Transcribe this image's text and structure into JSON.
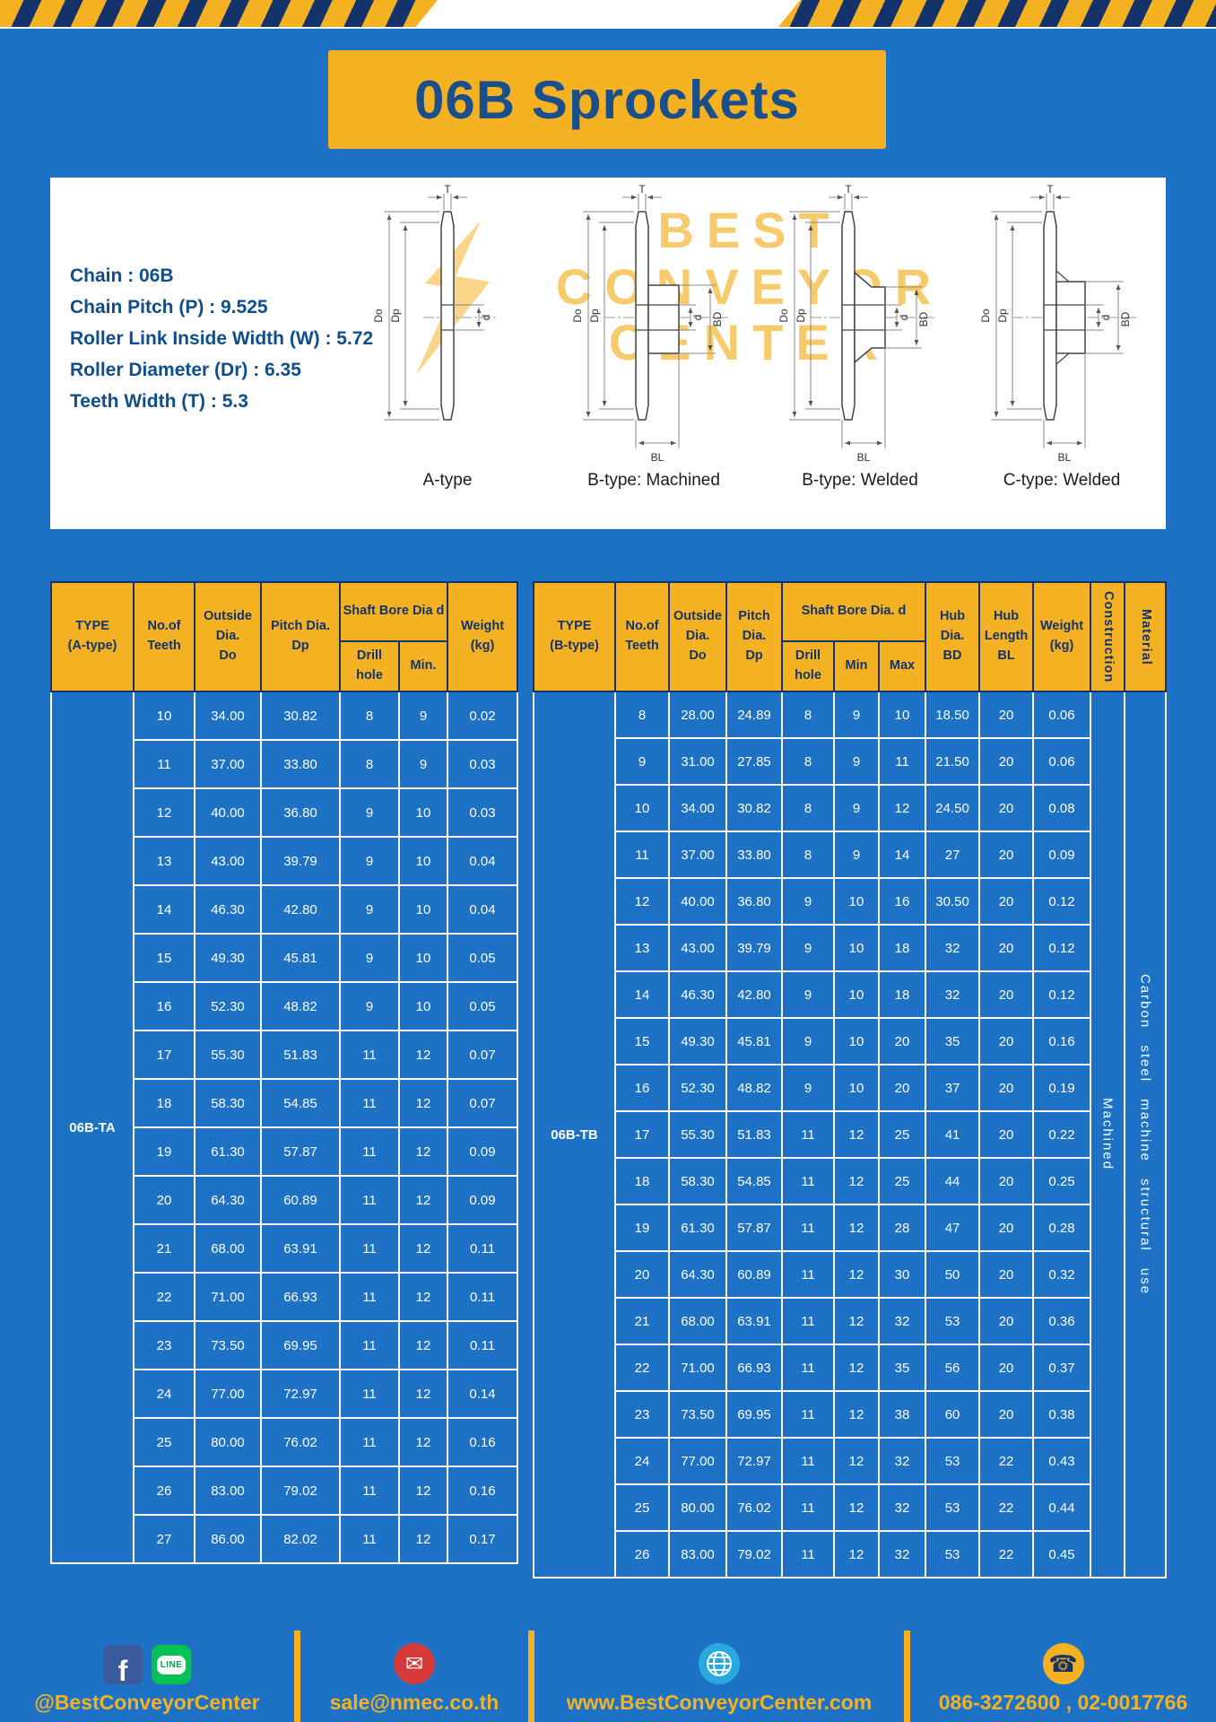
{
  "title": "06B Sprockets",
  "specs": {
    "lines": [
      "Chain  :  06B",
      "Chain Pitch (P)  :  9.525",
      "Roller Link Inside Width (W)  :  5.72",
      "Roller Diameter (Dr)  :  6.35",
      "Teeth Width (T)  :  5.3"
    ]
  },
  "watermark": {
    "line1": "BEST",
    "line2": "CONVEYOR",
    "line3": "CENTER"
  },
  "drawings": [
    {
      "label": "A-type",
      "dims": {
        "T": "T",
        "Do": "Do",
        "Dp": "Dp",
        "d": "d"
      }
    },
    {
      "label": "B-type: Machined",
      "dims": {
        "T": "T",
        "Do": "Do",
        "Dp": "Dp",
        "d": "d",
        "BD": "BD",
        "BL": "BL"
      }
    },
    {
      "label": "B-type: Welded",
      "dims": {
        "T": "T",
        "Do": "Do",
        "Dp": "Dp",
        "d": "d",
        "BD": "BD",
        "BL": "BL"
      }
    },
    {
      "label": "C-type: Welded",
      "dims": {
        "T": "T",
        "Do": "Do",
        "Dp": "Dp",
        "d": "d",
        "BD": "BD",
        "BL": "BL"
      }
    }
  ],
  "table_a": {
    "headers": {
      "type": "TYPE\n(A-type)",
      "teeth": "No.of\nTeeth",
      "outside": "Outside\nDia.\nDo",
      "pitch": "Pitch Dia.\nDp",
      "bore_group": "Shaft Bore Dia d",
      "drill": "Drill hole",
      "min": "Min.",
      "weight": "Weight\n(kg)"
    },
    "type_label": "06B-TA",
    "rows": [
      [
        "10",
        "34.00",
        "30.82",
        "8",
        "9",
        "0.02"
      ],
      [
        "11",
        "37.00",
        "33.80",
        "8",
        "9",
        "0.03"
      ],
      [
        "12",
        "40.00",
        "36.80",
        "9",
        "10",
        "0.03"
      ],
      [
        "13",
        "43.00",
        "39.79",
        "9",
        "10",
        "0.04"
      ],
      [
        "14",
        "46.30",
        "42.80",
        "9",
        "10",
        "0.04"
      ],
      [
        "15",
        "49.30",
        "45.81",
        "9",
        "10",
        "0.05"
      ],
      [
        "16",
        "52.30",
        "48.82",
        "9",
        "10",
        "0.05"
      ],
      [
        "17",
        "55.30",
        "51.83",
        "11",
        "12",
        "0.07"
      ],
      [
        "18",
        "58.30",
        "54.85",
        "11",
        "12",
        "0.07"
      ],
      [
        "19",
        "61.30",
        "57.87",
        "11",
        "12",
        "0.09"
      ],
      [
        "20",
        "64.30",
        "60.89",
        "11",
        "12",
        "0.09"
      ],
      [
        "21",
        "68.00",
        "63.91",
        "11",
        "12",
        "0.11"
      ],
      [
        "22",
        "71.00",
        "66.93",
        "11",
        "12",
        "0.11"
      ],
      [
        "23",
        "73.50",
        "69.95",
        "11",
        "12",
        "0.11"
      ],
      [
        "24",
        "77.00",
        "72.97",
        "11",
        "12",
        "0.14"
      ],
      [
        "25",
        "80.00",
        "76.02",
        "11",
        "12",
        "0.16"
      ],
      [
        "26",
        "83.00",
        "79.02",
        "11",
        "12",
        "0.16"
      ],
      [
        "27",
        "86.00",
        "82.02",
        "11",
        "12",
        "0.17"
      ]
    ]
  },
  "table_b": {
    "headers": {
      "type": "TYPE\n(B-type)",
      "teeth": "No.of\nTeeth",
      "outside": "Outside\nDia.\nDo",
      "pitch": "Pitch\nDia.\nDp",
      "bore_group": "Shaft Bore Dia.  d",
      "drill": "Drill hole",
      "min": "Min",
      "max": "Max",
      "hub_dia": "Hub\nDia.\nBD",
      "hub_len": "Hub\nLength\nBL",
      "weight": "Weight\n(kg)",
      "construction": "Construction",
      "material": "Material"
    },
    "type_label": "06B-TB",
    "construction_value": "Machined",
    "material_value": "Carbon steel machine structural use",
    "rows": [
      [
        "8",
        "28.00",
        "24.89",
        "8",
        "9",
        "10",
        "18.50",
        "20",
        "0.06"
      ],
      [
        "9",
        "31.00",
        "27.85",
        "8",
        "9",
        "11",
        "21.50",
        "20",
        "0.06"
      ],
      [
        "10",
        "34.00",
        "30.82",
        "8",
        "9",
        "12",
        "24.50",
        "20",
        "0.08"
      ],
      [
        "11",
        "37.00",
        "33.80",
        "8",
        "9",
        "14",
        "27",
        "20",
        "0.09"
      ],
      [
        "12",
        "40.00",
        "36.80",
        "9",
        "10",
        "16",
        "30.50",
        "20",
        "0.12"
      ],
      [
        "13",
        "43.00",
        "39.79",
        "9",
        "10",
        "18",
        "32",
        "20",
        "0.12"
      ],
      [
        "14",
        "46.30",
        "42.80",
        "9",
        "10",
        "18",
        "32",
        "20",
        "0.12"
      ],
      [
        "15",
        "49.30",
        "45.81",
        "9",
        "10",
        "20",
        "35",
        "20",
        "0.16"
      ],
      [
        "16",
        "52.30",
        "48.82",
        "9",
        "10",
        "20",
        "37",
        "20",
        "0.19"
      ],
      [
        "17",
        "55.30",
        "51.83",
        "11",
        "12",
        "25",
        "41",
        "20",
        "0.22"
      ],
      [
        "18",
        "58.30",
        "54.85",
        "11",
        "12",
        "25",
        "44",
        "20",
        "0.25"
      ],
      [
        "19",
        "61.30",
        "57.87",
        "11",
        "12",
        "28",
        "47",
        "20",
        "0.28"
      ],
      [
        "20",
        "64.30",
        "60.89",
        "11",
        "12",
        "30",
        "50",
        "20",
        "0.32"
      ],
      [
        "21",
        "68.00",
        "63.91",
        "11",
        "12",
        "32",
        "53",
        "20",
        "0.36"
      ],
      [
        "22",
        "71.00",
        "66.93",
        "11",
        "12",
        "35",
        "56",
        "20",
        "0.37"
      ],
      [
        "23",
        "73.50",
        "69.95",
        "11",
        "12",
        "38",
        "60",
        "20",
        "0.38"
      ],
      [
        "24",
        "77.00",
        "72.97",
        "11",
        "12",
        "32",
        "53",
        "22",
        "0.43"
      ],
      [
        "25",
        "80.00",
        "76.02",
        "11",
        "12",
        "32",
        "53",
        "22",
        "0.44"
      ],
      [
        "26",
        "83.00",
        "79.02",
        "11",
        "12",
        "32",
        "53",
        "22",
        "0.45"
      ]
    ]
  },
  "footer": {
    "facebook_letter": "f",
    "line_label": "LINE",
    "email_glyph": "✉",
    "phone_glyph": "☎",
    "segments": [
      {
        "text": "@BestConveyorCenter"
      },
      {
        "text": "sale@nmec.co.th"
      },
      {
        "text": "www.BestConveyorCenter.com"
      },
      {
        "text": "086-3272600 , 02-0017766"
      }
    ]
  },
  "colors": {
    "page_blue": "#1d72c6",
    "accent_yellow": "#f4b223",
    "dark_navy": "#14336b",
    "white": "#ffffff"
  }
}
